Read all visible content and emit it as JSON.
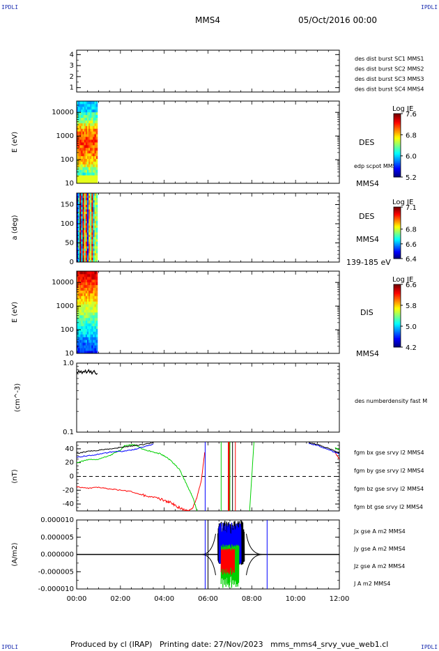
{
  "corners": {
    "tl": "IPDLI",
    "tr": "IPDLI",
    "bl": "IPDLI",
    "br": "IPDLI"
  },
  "header": {
    "spacecraft": "MMS4",
    "date": "05/Oct/2016 00:00"
  },
  "footer": {
    "text": "Produced by cl (IRAP)   Printing date: 27/Nov/2023   mms_mms4_srvy_vue_web1.cl"
  },
  "xaxis": {
    "ticks": [
      "00:00",
      "02:00",
      "04:00",
      "06:00",
      "08:00",
      "10:00",
      "12:00"
    ]
  },
  "colors": {
    "blue": "#0000ff",
    "magenta": "#e000e0",
    "red": "#ff0000",
    "green": "#00d000",
    "black": "#000000"
  },
  "chart_data": [
    {
      "type": "line",
      "panel": "spacecraft-index",
      "yticks": [
        "1",
        "2",
        "3",
        "4"
      ],
      "ylim": [
        0.6,
        4.4
      ],
      "legend": [
        {
          "text": "des dist burst SC1 MMS1",
          "color": "#0000ff"
        },
        {
          "text": "des dist burst SC2 MMS2",
          "color": "#e000e0"
        },
        {
          "text": "des dist burst SC3 MMS3",
          "color": "#ff0000"
        },
        {
          "text": "des dist burst SC4 MMS4",
          "color": "#00d000"
        }
      ]
    },
    {
      "type": "heatmap",
      "panel": "des-energy",
      "ylabel": "E (eV)",
      "yscale": "log",
      "ylim": [
        10,
        30000
      ],
      "yticks": [
        "10",
        "100",
        "1000",
        "10000"
      ],
      "xrange": [
        "00:00",
        "00:57"
      ],
      "label": "DES",
      "sublabel": "edp scpot MMS4",
      "sc_label": "MMS4",
      "colorbar": {
        "title": "Log JE",
        "ticks": [
          "5.2",
          "6.0",
          "6.8",
          "7.6"
        ],
        "range": [
          5.2,
          7.6
        ]
      }
    },
    {
      "type": "heatmap",
      "panel": "des-pitch-angle",
      "ylabel": "a (deg)",
      "ylim": [
        0,
        180
      ],
      "yticks": [
        "0",
        "50",
        "100",
        "150"
      ],
      "xrange": [
        "00:00",
        "00:57"
      ],
      "label": "DES",
      "sublabel": "MMS4",
      "energy_band": "139-185 eV",
      "colorbar": {
        "title": "Log JE",
        "ticks": [
          "6.4",
          "6.6",
          "6.8",
          "7.1"
        ],
        "range": [
          6.4,
          7.1
        ]
      }
    },
    {
      "type": "heatmap",
      "panel": "dis-energy",
      "ylabel": "E (eV)",
      "yscale": "log",
      "ylim": [
        10,
        30000
      ],
      "yticks": [
        "10",
        "100",
        "1000",
        "10000"
      ],
      "xrange": [
        "00:00",
        "00:57"
      ],
      "label": "DIS",
      "sc_label": "MMS4",
      "colorbar": {
        "title": "Log JE",
        "ticks": [
          "4.2",
          "5.0",
          "5.8",
          "6.6"
        ],
        "range": [
          4.2,
          6.6
        ]
      }
    },
    {
      "type": "line",
      "panel": "density",
      "ylabel": "(cm^-3)",
      "yscale": "log",
      "ylim": [
        0.1,
        1.0
      ],
      "yticks": [
        "0.1",
        "1.0"
      ],
      "series": [
        {
          "name": "des numberdensity fast M",
          "color": "#000000",
          "x": [
            0.0,
            0.05,
            0.1,
            0.15,
            0.2,
            0.25,
            0.3,
            0.35,
            0.4,
            0.45,
            0.5,
            0.55,
            0.6,
            0.65,
            0.7,
            0.75,
            0.8,
            0.85,
            0.9,
            0.95
          ],
          "y": [
            0.74,
            0.72,
            0.78,
            0.73,
            0.77,
            0.71,
            0.76,
            0.74,
            0.79,
            0.72,
            0.75,
            0.8,
            0.73,
            0.77,
            0.7,
            0.75,
            0.78,
            0.72,
            0.69,
            0.71
          ]
        }
      ]
    },
    {
      "type": "line",
      "panel": "magnetic-field",
      "ylabel": "(nT)",
      "ylim": [
        -50,
        50
      ],
      "yticks": [
        "-40",
        "-20",
        "0",
        "20",
        "40"
      ],
      "series": [
        {
          "name": "fgm bx gse srvy l2 MMS4",
          "color": "#ff0000",
          "x": [
            0,
            0.5,
            1,
            1.5,
            2,
            2.5,
            3,
            3.5,
            4,
            4.3,
            4.6,
            4.9,
            5.1,
            5.3,
            5.5,
            5.7,
            5.85,
            11.8,
            12
          ],
          "y": [
            -15,
            -17,
            -16,
            -18,
            -20,
            -22,
            -27,
            -30,
            -35,
            -38,
            -44,
            -48,
            -50,
            -46,
            -30,
            -5,
            35,
            35,
            25
          ]
        },
        {
          "name": "fgm by gse srvy l2 MMS4",
          "color": "#00d000",
          "x": [
            0,
            0.5,
            1,
            1.5,
            2,
            2.2,
            2.6,
            3,
            3.4,
            3.8,
            4.1,
            4.4,
            4.7,
            5.0,
            5.3,
            5.5,
            7.9,
            8.1,
            11.8,
            12
          ],
          "y": [
            20,
            24,
            25,
            30,
            38,
            45,
            46,
            40,
            36,
            33,
            28,
            20,
            10,
            -10,
            -30,
            -50,
            -50,
            50,
            42,
            38
          ]
        },
        {
          "name": "fgm bz gse srvy l2 MMS4",
          "color": "#0000ff",
          "x": [
            0,
            0.5,
            1,
            1.5,
            2,
            2.5,
            3,
            3.5,
            10.6,
            11,
            11.4,
            11.8,
            12
          ],
          "y": [
            28,
            30,
            32,
            35,
            36,
            38,
            42,
            47,
            48,
            45,
            40,
            35,
            32
          ]
        },
        {
          "name": "fgm bt gse srvy l2 MMS4",
          "color": "#000000",
          "x": [
            0,
            0.5,
            1,
            1.5,
            2,
            2.5,
            3,
            3.5,
            10.6,
            11,
            11.4,
            11.8,
            12
          ],
          "y": [
            33,
            36,
            38,
            40,
            42,
            44,
            46,
            49,
            49,
            46,
            42,
            37,
            34
          ]
        }
      ]
    },
    {
      "type": "line",
      "panel": "current-density",
      "ylabel": "(A/m2)",
      "ylim": [
        -1e-05,
        1e-05
      ],
      "yticks": [
        "-0.000010",
        "-0.000005",
        "0.000000",
        "0.000005",
        "0.000010"
      ],
      "series": [
        {
          "name": "Jx gse A m2 MMS4",
          "color": "#ff0000"
        },
        {
          "name": "Jy gse A m2 MMS4",
          "color": "#00d000"
        },
        {
          "name": "Jz gse A m2 MMS4",
          "color": "#0000ff"
        },
        {
          "name": "J A m2 MMS4",
          "color": "#000000"
        }
      ]
    }
  ]
}
